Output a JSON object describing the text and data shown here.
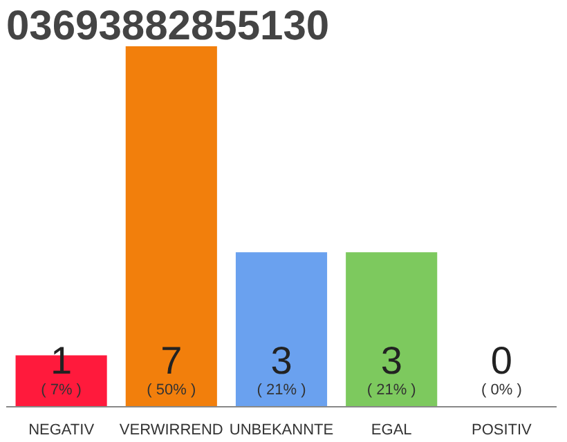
{
  "chart_data": {
    "type": "bar",
    "title": "03693882855130",
    "categories": [
      "NEGATIV",
      "VERWIRREND",
      "UNBEKANNTE",
      "EGAL",
      "POSITIV"
    ],
    "values": [
      1,
      7,
      3,
      3,
      0
    ],
    "colors": [
      "#ff1a3c",
      "#f27f0c",
      "#6aa1ef",
      "#7dc95e",
      "#cccccc"
    ],
    "data_labels": true,
    "annotations": [
      "( 7% )",
      "( 50% )",
      "( 21% )",
      "( 21% )",
      "( 0% )"
    ],
    "grid": false
  }
}
